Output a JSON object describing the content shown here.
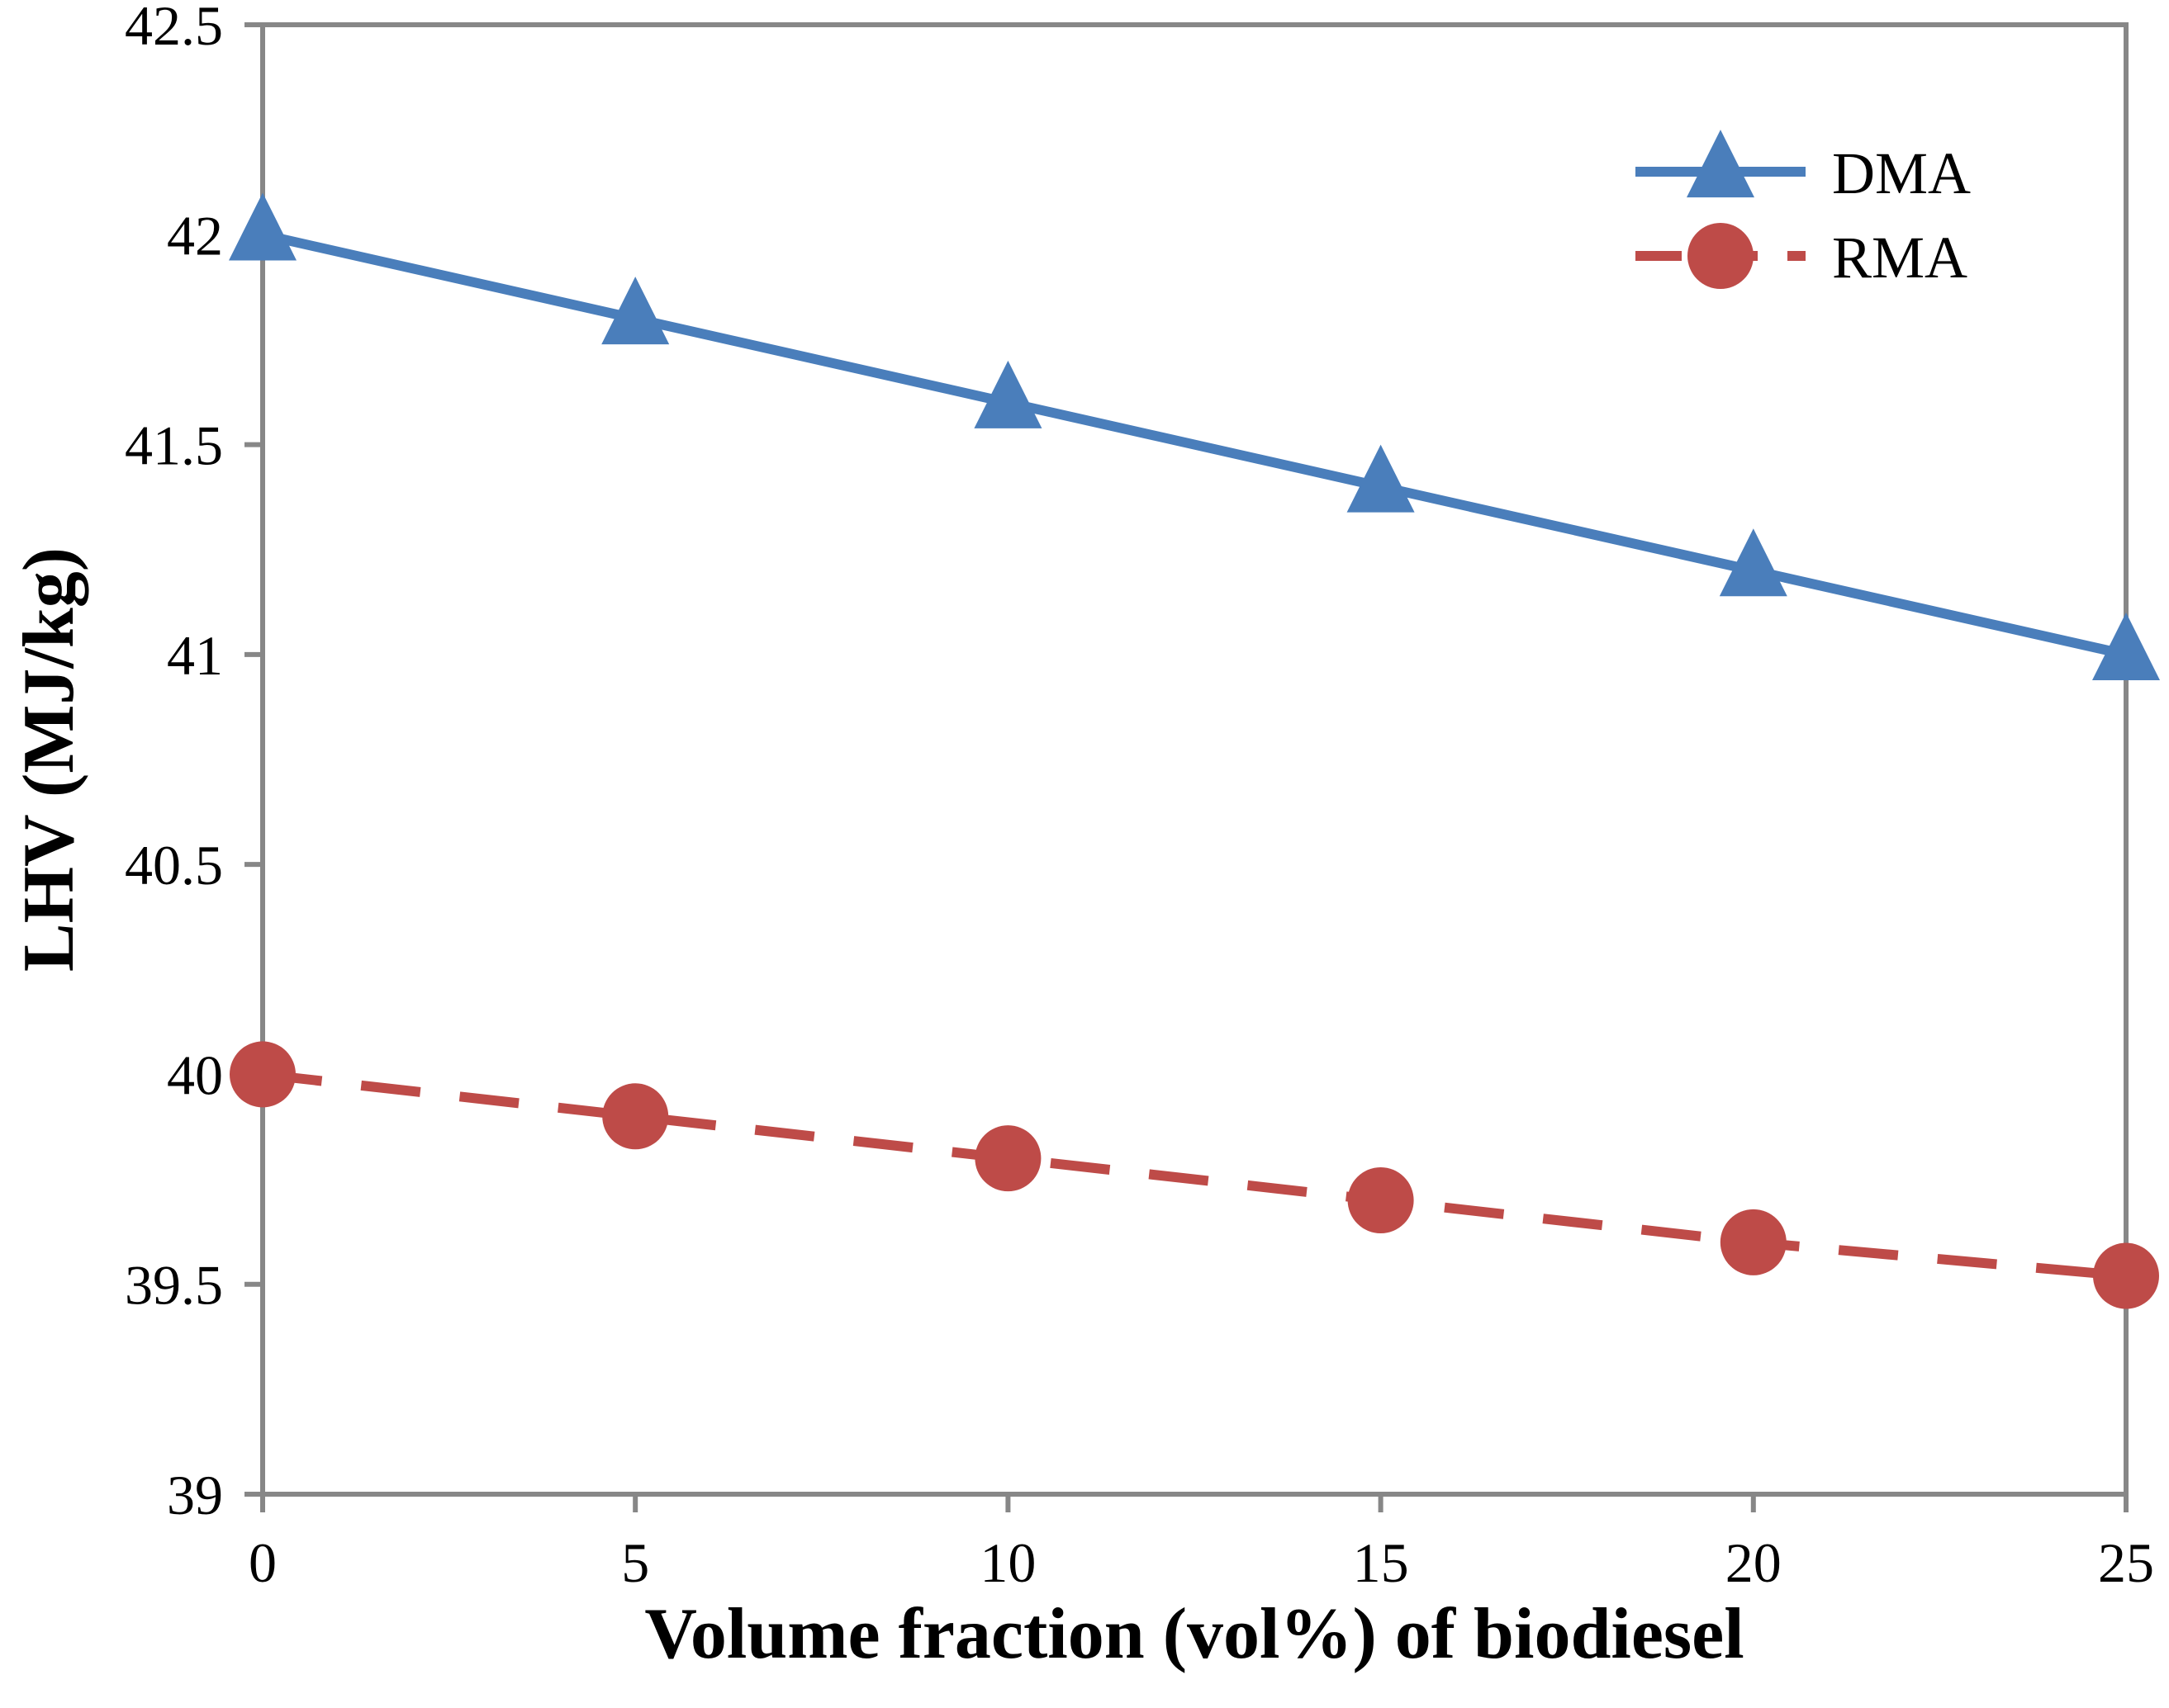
{
  "chart_data": {
    "type": "line",
    "title": "",
    "xlabel": "Volume fraction (vol%) of biodiesel",
    "ylabel": "LHV (MJ/kg)",
    "x": [
      0,
      5,
      10,
      15,
      20,
      25
    ],
    "xlim": [
      0,
      25
    ],
    "ylim": [
      39,
      42.5
    ],
    "xticks": [
      0,
      5,
      10,
      15,
      20,
      25
    ],
    "yticks": [
      39,
      39.5,
      40,
      40.5,
      41,
      41.5,
      42,
      42.5
    ],
    "xtick_labels": [
      "0",
      "5",
      "10",
      "15",
      "20",
      "25"
    ],
    "ytick_labels": [
      "39",
      "39.5",
      "40",
      "40.5",
      "41",
      "41.5",
      "42",
      "42.5"
    ],
    "grid": false,
    "legend_position": "top-right",
    "series": [
      {
        "name": "DMA",
        "values": [
          42.0,
          41.8,
          41.6,
          41.4,
          41.2,
          41.0
        ],
        "color": "#4a7ebb",
        "marker": "triangle",
        "line_style": "solid"
      },
      {
        "name": "RMA",
        "values": [
          40.0,
          39.9,
          39.8,
          39.7,
          39.6,
          39.52
        ],
        "color": "#be4b48",
        "marker": "circle",
        "line_style": "dashed"
      }
    ]
  }
}
